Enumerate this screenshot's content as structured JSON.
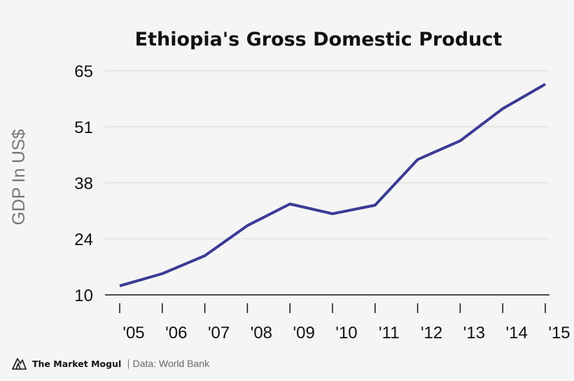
{
  "chart_data": {
    "type": "line",
    "title": "Ethiopia's Gross Domestic Product",
    "xlabel": "",
    "ylabel": "GDP In US$",
    "categories": [
      "'05",
      "'06",
      "'07",
      "'08",
      "'09",
      "'10",
      "'11",
      "'12",
      "'13",
      "'14",
      "'15"
    ],
    "values": [
      12.2,
      15.2,
      19.6,
      27.0,
      32.3,
      29.9,
      32.0,
      43.2,
      47.8,
      55.7,
      61.7
    ],
    "yticks": [
      "10",
      "24",
      "38",
      "51",
      "65"
    ],
    "ylim": [
      10,
      65
    ],
    "grid": true,
    "line_color": "#3b3b95"
  },
  "footer": {
    "brand": "The Market Mogul",
    "separator": "|",
    "source": "Data: World Bank",
    "logo_icon": "mountain-logo-icon"
  }
}
